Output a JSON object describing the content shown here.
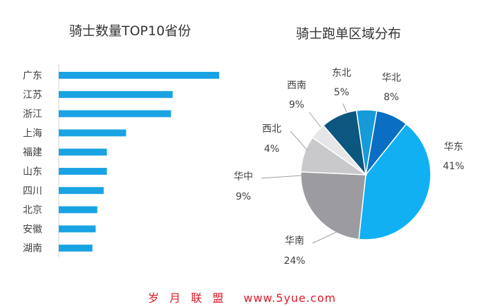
{
  "chart_data": [
    {
      "type": "bar",
      "orientation": "horizontal",
      "title": "骑士数量TOP10省份",
      "categories": [
        "广东",
        "江苏",
        "浙江",
        "上海",
        "福建",
        "山东",
        "四川",
        "北京",
        "安徽",
        "湖南"
      ],
      "values": [
        100,
        71,
        70,
        42,
        30,
        30,
        28,
        24,
        23,
        21
      ],
      "bar_color": "#1aa3e3",
      "grid": false,
      "legend": "none"
    },
    {
      "type": "pie",
      "title": "骑士跑单区域分布",
      "slices": [
        {
          "label": "华北",
          "value": 8,
          "value_label": "8%",
          "color": "#0a6fc2"
        },
        {
          "label": "华东",
          "value": 41,
          "value_label": "41%",
          "color": "#10b0f2"
        },
        {
          "label": "华南",
          "value": 24,
          "value_label": "24%",
          "color": "#9b9ba0"
        },
        {
          "label": "华中",
          "value": 9,
          "value_label": "9%",
          "color": "#c9c9cc"
        },
        {
          "label": "西北",
          "value": 4,
          "value_label": "4%",
          "color": "#e6e6e8"
        },
        {
          "label": "西南",
          "value": 9,
          "value_label": "9%",
          "color": "#0b577f"
        },
        {
          "label": "东北",
          "value": 5,
          "value_label": "5%",
          "color": "#169ad8"
        }
      ],
      "legend": "none"
    }
  ],
  "watermark": {
    "text": "岁 月 联 盟",
    "url": "www.5yue.com"
  }
}
